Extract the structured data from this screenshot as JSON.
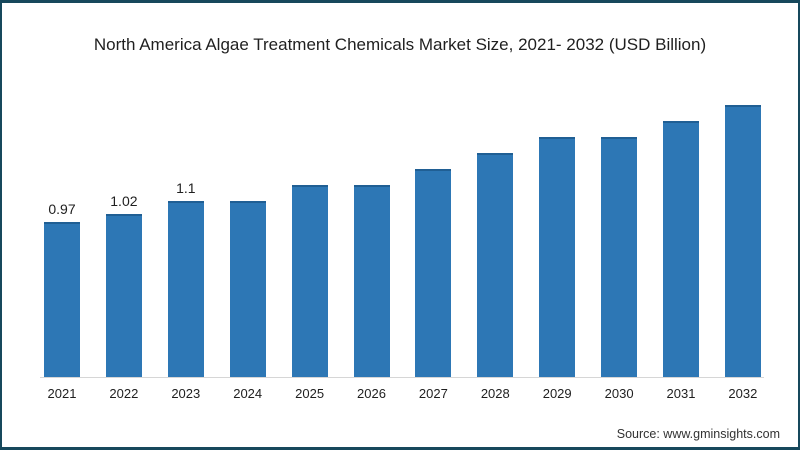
{
  "chart_data": {
    "type": "bar",
    "title": "North America Algae Treatment Chemicals Market Size, 2021- 2032 (USD Billion)",
    "categories": [
      "2021",
      "2022",
      "2023",
      "2024",
      "2025",
      "2026",
      "2027",
      "2028",
      "2029",
      "2030",
      "2031",
      "2032"
    ],
    "values": [
      0.97,
      1.02,
      1.1,
      1.1,
      1.2,
      1.2,
      1.3,
      1.4,
      1.5,
      1.5,
      1.6,
      1.7
    ],
    "data_labels": [
      "0.97",
      "1.02",
      "1.1",
      "",
      "",
      "",
      "",
      "",
      "",
      "",
      "",
      ""
    ],
    "xlabel": "",
    "ylabel": "",
    "ylim": [
      0,
      1.8
    ],
    "grid": false,
    "legend": "none",
    "bar_color": "#2d77b5",
    "bar_top_color": "#205f94",
    "axis_line_color": "#d6d6d6",
    "text_color": "#1f1f1f"
  },
  "frame": {
    "border_color": "#17485c",
    "background": "#ffffff"
  },
  "source": {
    "label": "Source: www.gminsights.com"
  }
}
